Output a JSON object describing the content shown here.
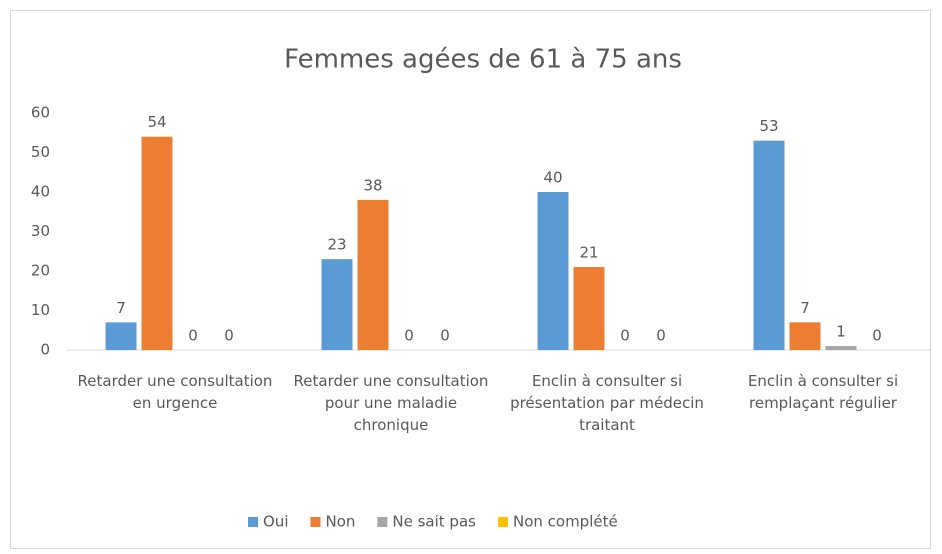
{
  "chart_data": {
    "type": "bar",
    "title": "Femmes agées de 61 à 75 ans",
    "categories": [
      "Retarder une consultation en urgence",
      "Retarder une consultation pour une maladie chronique",
      "Enclin à consulter si présentation par médecin traitant",
      "Enclin à consulter si remplaçant régulier"
    ],
    "series": [
      {
        "name": "Oui",
        "color": "#5b9bd5",
        "values": [
          7,
          23,
          40,
          53
        ]
      },
      {
        "name": "Non",
        "color": "#ed7d31",
        "values": [
          54,
          38,
          21,
          7
        ]
      },
      {
        "name": "Ne sait pas",
        "color": "#a5a5a5",
        "values": [
          0,
          0,
          0,
          1
        ]
      },
      {
        "name": "Non complété",
        "color": "#ffc000",
        "values": [
          0,
          0,
          0,
          0
        ]
      }
    ],
    "ylim": [
      0,
      60
    ],
    "yticks": [
      0,
      10,
      20,
      30,
      40,
      50,
      60
    ],
    "grid": false,
    "legend": "bottom"
  }
}
